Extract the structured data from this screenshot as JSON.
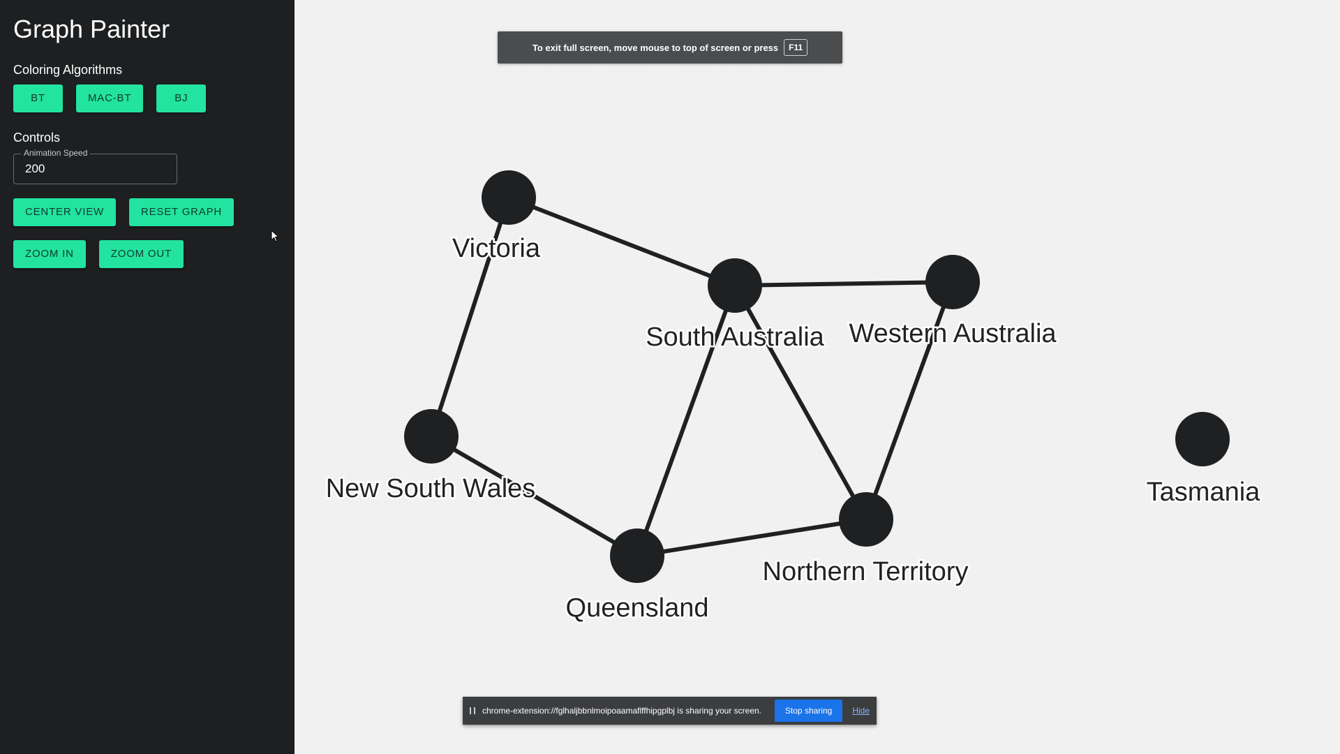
{
  "sidebar": {
    "title": "Graph Painter",
    "algorithms_heading": "Coloring Algorithms",
    "algorithms": [
      "BT",
      "MAC-BT",
      "BJ"
    ],
    "controls_heading": "Controls",
    "animation_speed_label": "Animation Speed",
    "animation_speed_value": "200",
    "center_view_label": "CENTER VIEW",
    "reset_graph_label": "RESET GRAPH",
    "zoom_in_label": "ZOOM IN",
    "zoom_out_label": "ZOOM OUT"
  },
  "fullscreen_notice": {
    "text": "To exit full screen, move mouse to top of screen or press",
    "key": "F11"
  },
  "graph": {
    "nodes": [
      {
        "id": "victoria",
        "label": "Victoria"
      },
      {
        "id": "south-australia",
        "label": "South Australia"
      },
      {
        "id": "western-australia",
        "label": "Western Australia"
      },
      {
        "id": "new-south-wales",
        "label": "New South Wales"
      },
      {
        "id": "queensland",
        "label": "Queensland"
      },
      {
        "id": "northern-territory",
        "label": "Northern Territory"
      },
      {
        "id": "tasmania",
        "label": "Tasmania"
      }
    ],
    "edges": [
      [
        "victoria",
        "south-australia"
      ],
      [
        "victoria",
        "new-south-wales"
      ],
      [
        "south-australia",
        "western-australia"
      ],
      [
        "south-australia",
        "queensland"
      ],
      [
        "south-australia",
        "northern-territory"
      ],
      [
        "western-australia",
        "northern-territory"
      ],
      [
        "new-south-wales",
        "queensland"
      ],
      [
        "queensland",
        "northern-territory"
      ]
    ],
    "node_color": "#1f2022"
  },
  "share_bar": {
    "text": "chrome-extension://fglhaljbbnlmoipoaamaflffhipgplbj is sharing your screen.",
    "stop_label": "Stop sharing",
    "hide_label": "Hide"
  },
  "colors": {
    "sidebar_bg": "#1d1f21",
    "accent": "#22e3a0",
    "canvas_bg": "#f2f2f2"
  }
}
